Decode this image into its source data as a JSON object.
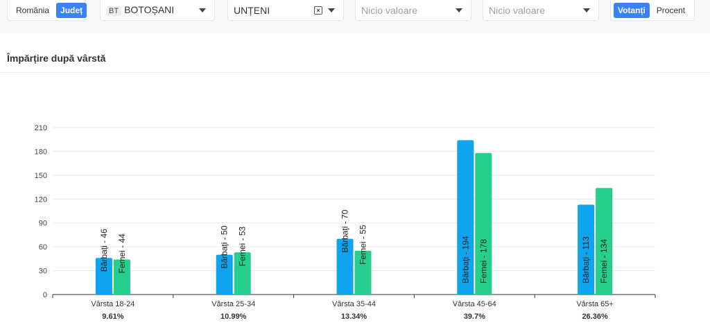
{
  "filters": {
    "scope": {
      "options": [
        "România",
        "Județ"
      ],
      "active": "Județ"
    },
    "county": {
      "badge": "BT",
      "value": "BOTOȘANI"
    },
    "locality": {
      "value": "UNȚENI"
    },
    "select3": {
      "placeholder": "Nicio valoare"
    },
    "select4": {
      "placeholder": "Nicio valoare"
    },
    "mode": {
      "options": [
        "Votanți",
        "Procent"
      ],
      "active": "Votanți"
    }
  },
  "panel": {
    "title": "Împărțire după vârstă"
  },
  "colors": {
    "accent": "#3b82f6",
    "men": "#0ea5ee",
    "women": "#26d08c"
  },
  "chart_data": {
    "type": "bar",
    "categories": [
      "Vârsta 18-24",
      "Vârsta 25-34",
      "Vârsta 35-44",
      "Vârsta 45-64",
      "Vârsta 65+"
    ],
    "percentages": [
      "9.61%",
      "10.99%",
      "13.34%",
      "39.7%",
      "26.36%"
    ],
    "series": [
      {
        "name": "Bărbați",
        "values": [
          46,
          50,
          70,
          194,
          113
        ],
        "labels": [
          "Bărbați - 46",
          "Bărbați - 50",
          "Bărbați - 70",
          "Bărbați - 194",
          "Bărbați - 113"
        ]
      },
      {
        "name": "Femei",
        "values": [
          44,
          53,
          55,
          178,
          134
        ],
        "labels": [
          "Femei - 44",
          "Femei - 53",
          "Femei - 55",
          "Femei - 178",
          "Femei - 134"
        ]
      }
    ],
    "ylim": [
      0,
      210
    ],
    "yticks": [
      0,
      30,
      60,
      90,
      120,
      150,
      180,
      210
    ],
    "grid": true
  }
}
